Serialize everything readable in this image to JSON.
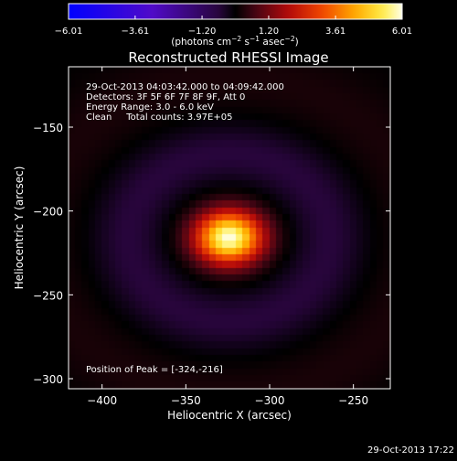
{
  "colorbar": {
    "min_label": "-6.01",
    "ticks": [
      "-6.01",
      "-3.61",
      "-1.20",
      "1.20",
      "3.61",
      "6.01"
    ],
    "unit_parts": [
      "(photons cm",
      "−2",
      " s",
      "−1",
      " asec",
      "−2",
      ")"
    ]
  },
  "chart_data": {
    "type": "heatmap",
    "title": "Reconstructed RHESSI Image",
    "xlabel": "Heliocentric X (arcsec)",
    "ylabel": "Heliocentric Y (arcsec)",
    "xlim": [
      -420,
      -228
    ],
    "ylim": [
      -306,
      -114
    ],
    "xticks": [
      -400,
      -350,
      -300,
      -250
    ],
    "yticks": [
      -150,
      -200,
      -250,
      -300
    ],
    "value_range": [
      -6.01,
      6.01
    ],
    "colormap": "rhessi-signed",
    "source": {
      "peak_x": -324,
      "peak_y": -216,
      "sigma_x_arcsec": 14,
      "sigma_y_arcsec": 11,
      "peak_value": 6.01,
      "ring_value": -0.6
    },
    "annotations": [
      "29-Oct-2013 04:03:42.000  to  04:09:42.000",
      "Detectors: 3F 5F 6F 7F 8F 9F, Att 0",
      "Energy Range: 3.0 - 6.0 keV",
      "Clean     Total counts: 3.97E+05"
    ],
    "peak_label": "Position of Peak = [-324,-216]"
  },
  "footer": {
    "timestamp": "29-Oct-2013 17:22"
  }
}
